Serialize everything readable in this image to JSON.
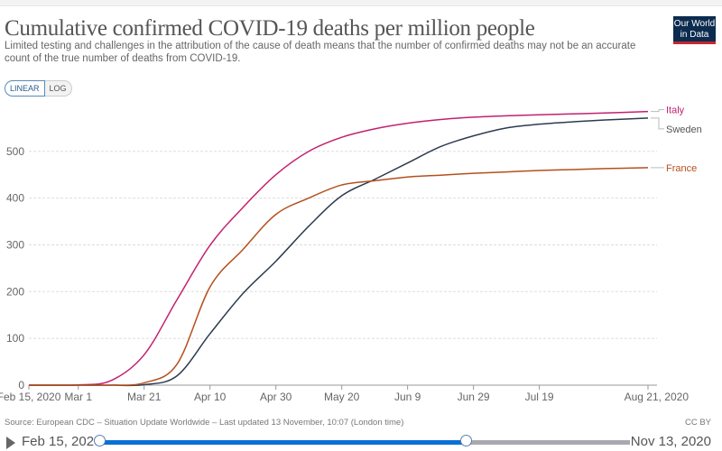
{
  "header": {
    "title": "Cumulative confirmed COVID-19 deaths per million people",
    "subtitle": "Limited testing and challenges in the attribution of the cause of death means that the number of confirmed deaths may not be an accurate count of the true number of deaths from COVID-19.",
    "logo_text": "Our World in Data"
  },
  "controls": {
    "linear_label": "LINEAR",
    "log_label": "LOG",
    "selected": "LINEAR"
  },
  "footer": {
    "source": "Source: European CDC – Situation Update Worldwide – Last updated 13 November, 10:07 (London time)",
    "license": "CC BY"
  },
  "timeline": {
    "start_label": "Feb 15, 2020",
    "end_label": "Nov 13, 2020",
    "selected_end_fraction": 0.69,
    "accent": "#0b6fd6"
  },
  "chart_data": {
    "type": "line",
    "title": "Cumulative confirmed COVID-19 deaths per million people",
    "ylim": [
      0,
      600
    ],
    "xlim": [
      "2020-02-15",
      "2020-08-21"
    ],
    "y_ticks": [
      "0",
      "100",
      "200",
      "300",
      "400",
      "500"
    ],
    "x_ticks": [
      {
        "date": "2020-02-15",
        "label": "Feb 15, 2020"
      },
      {
        "date": "2020-03-01",
        "label": "Mar 1"
      },
      {
        "date": "2020-03-21",
        "label": "Mar 21"
      },
      {
        "date": "2020-04-10",
        "label": "Apr 10"
      },
      {
        "date": "2020-04-30",
        "label": "Apr 30"
      },
      {
        "date": "2020-05-20",
        "label": "May 20"
      },
      {
        "date": "2020-06-09",
        "label": "Jun 9"
      },
      {
        "date": "2020-06-29",
        "label": "Jun 29"
      },
      {
        "date": "2020-07-19",
        "label": "Jul 19"
      },
      {
        "date": "2020-08-21",
        "label": "Aug 21, 2020"
      }
    ],
    "grid": true,
    "legend": "right (line-end labels)",
    "x": [
      "2020-02-15",
      "2020-03-01",
      "2020-03-11",
      "2020-03-21",
      "2020-03-31",
      "2020-04-10",
      "2020-04-20",
      "2020-04-30",
      "2020-05-10",
      "2020-05-20",
      "2020-05-30",
      "2020-06-09",
      "2020-06-19",
      "2020-06-29",
      "2020-07-09",
      "2020-07-19",
      "2020-07-29",
      "2020-08-08",
      "2020-08-21"
    ],
    "series": [
      {
        "name": "Italy",
        "color": "#c2216f",
        "values": [
          0,
          0.5,
          10,
          65,
          183,
          299,
          380,
          450,
          500,
          530,
          548,
          560,
          568,
          573,
          576,
          578,
          580,
          582,
          585
        ]
      },
      {
        "name": "Sweden",
        "color": "#2d3b50",
        "values": [
          0,
          0,
          0,
          1,
          20,
          110,
          196,
          265,
          340,
          405,
          440,
          475,
          510,
          533,
          550,
          558,
          563,
          567,
          571
        ]
      },
      {
        "name": "France",
        "color": "#b4501c",
        "values": [
          0,
          0,
          0,
          5,
          45,
          210,
          290,
          365,
          400,
          428,
          437,
          445,
          449,
          453,
          456,
          459,
          461,
          463,
          465
        ]
      }
    ]
  }
}
